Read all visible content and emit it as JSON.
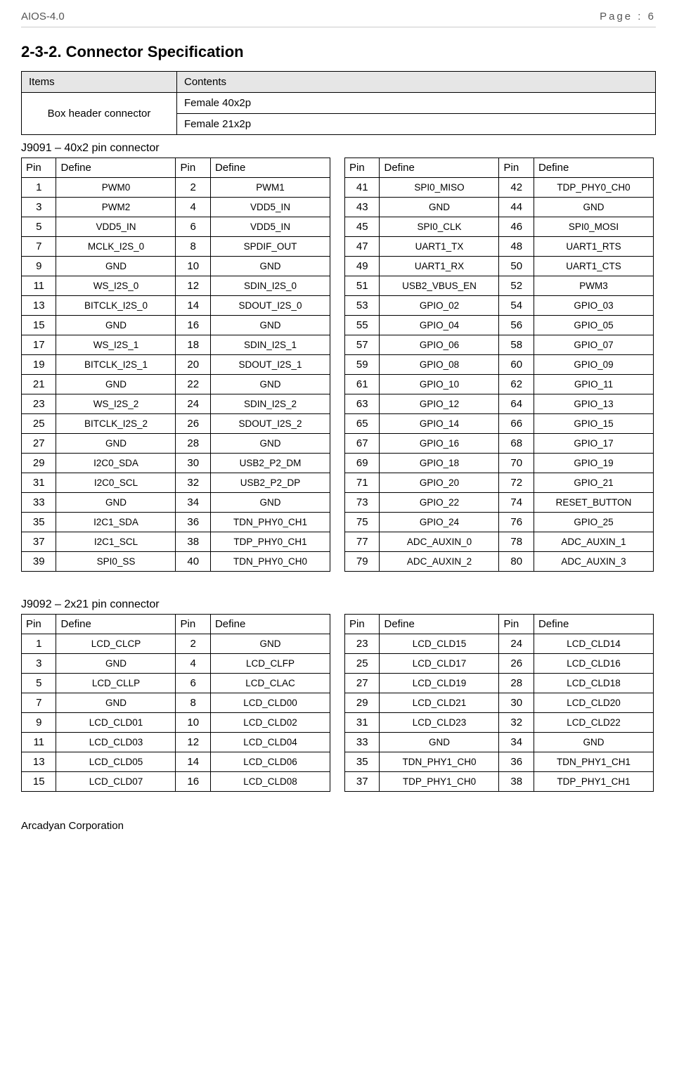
{
  "header": {
    "doc_id": "AIOS-4.0",
    "page_label": "Page : 6"
  },
  "section_title": "2-3-2. Connector Specification",
  "spec_table": {
    "head_items": "Items",
    "head_contents": "Contents",
    "rows": [
      {
        "item": "Box header connector",
        "contents": [
          "Female 40x2p",
          "Female 21x2p"
        ]
      }
    ]
  },
  "connectors": [
    {
      "title": "J9091 – 40x2 pin connector",
      "col_labels": [
        "Pin",
        "Define",
        "Pin",
        "Define"
      ],
      "left_rows": [
        [
          "1",
          "PWM0",
          "2",
          "PWM1"
        ],
        [
          "3",
          "PWM2",
          "4",
          "VDD5_IN"
        ],
        [
          "5",
          "VDD5_IN",
          "6",
          "VDD5_IN"
        ],
        [
          "7",
          "MCLK_I2S_0",
          "8",
          "SPDIF_OUT"
        ],
        [
          "9",
          "GND",
          "10",
          "GND"
        ],
        [
          "11",
          "WS_I2S_0",
          "12",
          "SDIN_I2S_0"
        ],
        [
          "13",
          "BITCLK_I2S_0",
          "14",
          "SDOUT_I2S_0"
        ],
        [
          "15",
          "GND",
          "16",
          "GND"
        ],
        [
          "17",
          "WS_I2S_1",
          "18",
          "SDIN_I2S_1"
        ],
        [
          "19",
          "BITCLK_I2S_1",
          "20",
          "SDOUT_I2S_1"
        ],
        [
          "21",
          "GND",
          "22",
          "GND"
        ],
        [
          "23",
          "WS_I2S_2",
          "24",
          "SDIN_I2S_2"
        ],
        [
          "25",
          "BITCLK_I2S_2",
          "26",
          "SDOUT_I2S_2"
        ],
        [
          "27",
          "GND",
          "28",
          "GND"
        ],
        [
          "29",
          "I2C0_SDA",
          "30",
          "USB2_P2_DM"
        ],
        [
          "31",
          "I2C0_SCL",
          "32",
          "USB2_P2_DP"
        ],
        [
          "33",
          "GND",
          "34",
          "GND"
        ],
        [
          "35",
          "I2C1_SDA",
          "36",
          "TDN_PHY0_CH1"
        ],
        [
          "37",
          "I2C1_SCL",
          "38",
          "TDP_PHY0_CH1"
        ],
        [
          "39",
          "SPI0_SS",
          "40",
          "TDN_PHY0_CH0"
        ]
      ],
      "right_rows": [
        [
          "41",
          "SPI0_MISO",
          "42",
          "TDP_PHY0_CH0"
        ],
        [
          "43",
          "GND",
          "44",
          "GND"
        ],
        [
          "45",
          "SPI0_CLK",
          "46",
          "SPI0_MOSI"
        ],
        [
          "47",
          "UART1_TX",
          "48",
          "UART1_RTS"
        ],
        [
          "49",
          "UART1_RX",
          "50",
          "UART1_CTS"
        ],
        [
          "51",
          "USB2_VBUS_EN",
          "52",
          "PWM3"
        ],
        [
          "53",
          "GPIO_02",
          "54",
          "GPIO_03"
        ],
        [
          "55",
          "GPIO_04",
          "56",
          "GPIO_05"
        ],
        [
          "57",
          "GPIO_06",
          "58",
          "GPIO_07"
        ],
        [
          "59",
          "GPIO_08",
          "60",
          "GPIO_09"
        ],
        [
          "61",
          "GPIO_10",
          "62",
          "GPIO_11"
        ],
        [
          "63",
          "GPIO_12",
          "64",
          "GPIO_13"
        ],
        [
          "65",
          "GPIO_14",
          "66",
          "GPIO_15"
        ],
        [
          "67",
          "GPIO_16",
          "68",
          "GPIO_17"
        ],
        [
          "69",
          "GPIO_18",
          "70",
          "GPIO_19"
        ],
        [
          "71",
          "GPIO_20",
          "72",
          "GPIO_21"
        ],
        [
          "73",
          "GPIO_22",
          "74",
          "RESET_BUTTON"
        ],
        [
          "75",
          "GPIO_24",
          "76",
          "GPIO_25"
        ],
        [
          "77",
          "ADC_AUXIN_0",
          "78",
          "ADC_AUXIN_1"
        ],
        [
          "79",
          "ADC_AUXIN_2",
          "80",
          "ADC_AUXIN_3"
        ]
      ]
    },
    {
      "title": "J9092 – 2x21 pin connector",
      "col_labels": [
        "Pin",
        "Define",
        "Pin",
        "Define"
      ],
      "left_rows": [
        [
          "1",
          "LCD_CLCP",
          "2",
          "GND"
        ],
        [
          "3",
          "GND",
          "4",
          "LCD_CLFP"
        ],
        [
          "5",
          "LCD_CLLP",
          "6",
          "LCD_CLAC"
        ],
        [
          "7",
          "GND",
          "8",
          "LCD_CLD00"
        ],
        [
          "9",
          "LCD_CLD01",
          "10",
          "LCD_CLD02"
        ],
        [
          "11",
          "LCD_CLD03",
          "12",
          "LCD_CLD04"
        ],
        [
          "13",
          "LCD_CLD05",
          "14",
          "LCD_CLD06"
        ],
        [
          "15",
          "LCD_CLD07",
          "16",
          "LCD_CLD08"
        ]
      ],
      "right_rows": [
        [
          "23",
          "LCD_CLD15",
          "24",
          "LCD_CLD14"
        ],
        [
          "25",
          "LCD_CLD17",
          "26",
          "LCD_CLD16"
        ],
        [
          "27",
          "LCD_CLD19",
          "28",
          "LCD_CLD18"
        ],
        [
          "29",
          "LCD_CLD21",
          "30",
          "LCD_CLD20"
        ],
        [
          "31",
          "LCD_CLD23",
          "32",
          "LCD_CLD22"
        ],
        [
          "33",
          "GND",
          "34",
          "GND"
        ],
        [
          "35",
          "TDN_PHY1_CH0",
          "36",
          "TDN_PHY1_CH1"
        ],
        [
          "37",
          "TDP_PHY1_CH0",
          "38",
          "TDP_PHY1_CH1"
        ]
      ]
    }
  ],
  "footer": "Arcadyan Corporation"
}
